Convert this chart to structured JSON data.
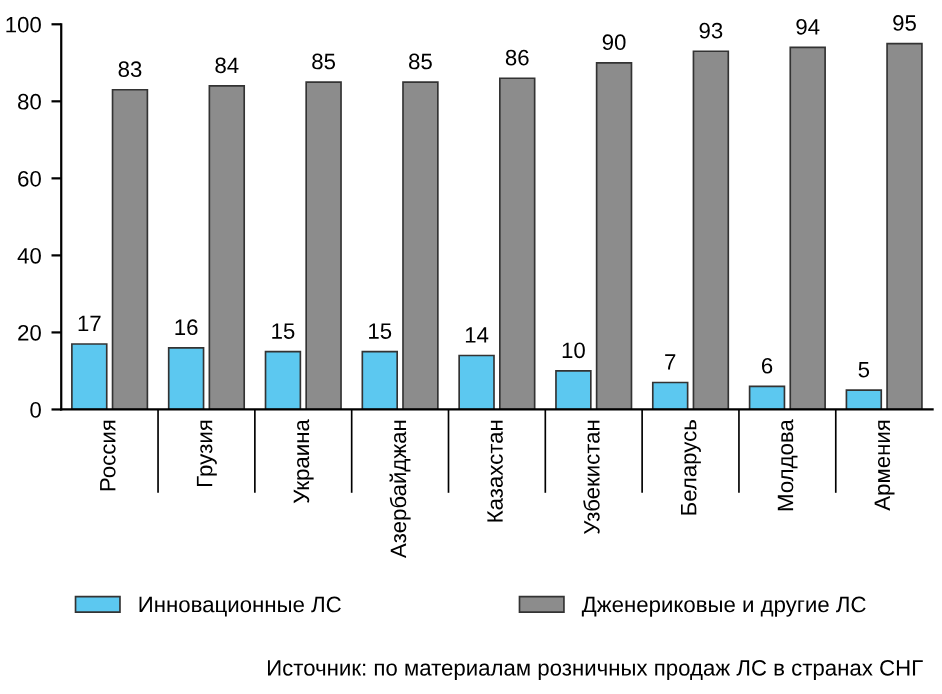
{
  "chart_data": {
    "type": "bar",
    "categories": [
      "Россия",
      "Грузия",
      "Украина",
      "Азербайджан",
      "Казахстан",
      "Узбекистан",
      "Беларусь",
      "Молдова",
      "Армения"
    ],
    "series": [
      {
        "name": "Инновационные ЛС",
        "color": "#5cc8f0",
        "values": [
          17,
          16,
          15,
          15,
          14,
          10,
          7,
          6,
          5
        ]
      },
      {
        "name": "Дженериковые и другие ЛС",
        "color": "#8c8c8c",
        "values": [
          83,
          84,
          85,
          85,
          86,
          90,
          93,
          94,
          95
        ]
      }
    ],
    "ylim": [
      0,
      100
    ],
    "yticks": [
      0,
      20,
      40,
      60,
      80,
      100
    ],
    "data_labels": true,
    "grid": false,
    "legend": "bottom",
    "annotations": [
      "Источник: по материалам розничных продаж ЛС в странах СНГ"
    ]
  }
}
